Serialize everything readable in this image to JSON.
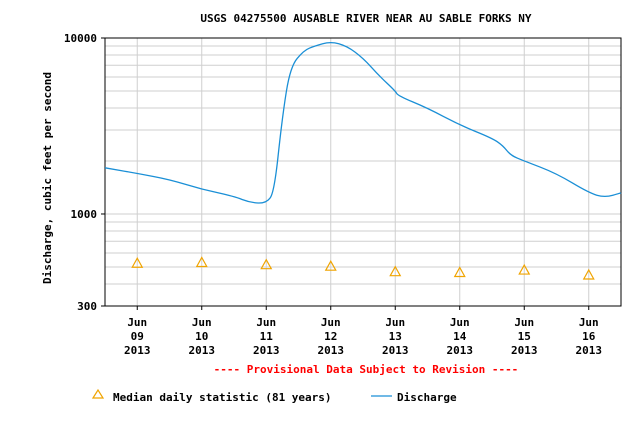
{
  "chart_data": {
    "type": "line",
    "title": "USGS 04275500 AUSABLE RIVER NEAR AU SABLE FORKS NY",
    "ylabel": "Discharge, cubic feet per second",
    "xlabel": "",
    "y_scale": "log",
    "ylim": [
      300,
      10000
    ],
    "y_ticks": [
      "10000",
      "1000",
      "300"
    ],
    "x_ticks": [
      {
        "month": "Jun",
        "day": "09",
        "year": "2013"
      },
      {
        "month": "Jun",
        "day": "10",
        "year": "2013"
      },
      {
        "month": "Jun",
        "day": "11",
        "year": "2013"
      },
      {
        "month": "Jun",
        "day": "12",
        "year": "2013"
      },
      {
        "month": "Jun",
        "day": "13",
        "year": "2013"
      },
      {
        "month": "Jun",
        "day": "14",
        "year": "2013"
      },
      {
        "month": "Jun",
        "day": "15",
        "year": "2013"
      },
      {
        "month": "Jun",
        "day": "16",
        "year": "2013"
      }
    ],
    "xlim": [
      "2013-06-08T12:00",
      "2013-06-16T12:00"
    ],
    "grid": true,
    "legend_position": "bottom",
    "series": [
      {
        "name": "Discharge",
        "kind": "line",
        "color": "#1a8fd6",
        "points": [
          [
            "2013-06-08T12:00",
            1830
          ],
          [
            "2013-06-09T00:00",
            1700
          ],
          [
            "2013-06-09T12:00",
            1570
          ],
          [
            "2013-06-10T00:00",
            1380
          ],
          [
            "2013-06-10T12:00",
            1260
          ],
          [
            "2013-06-10T18:00",
            1160
          ],
          [
            "2013-06-11T00:00",
            1150
          ],
          [
            "2013-06-11T03:00",
            1330
          ],
          [
            "2013-06-11T06:00",
            3600
          ],
          [
            "2013-06-11T09:00",
            6900
          ],
          [
            "2013-06-11T14:00",
            8500
          ],
          [
            "2013-06-11T18:00",
            9000
          ],
          [
            "2013-06-12T00:00",
            9550
          ],
          [
            "2013-06-12T06:00",
            9000
          ],
          [
            "2013-06-12T12:00",
            7700
          ],
          [
            "2013-06-12T18:00",
            6100
          ],
          [
            "2013-06-13T00:00",
            5000
          ],
          [
            "2013-06-13T01:00",
            4700
          ],
          [
            "2013-06-13T12:00",
            4000
          ],
          [
            "2013-06-14T00:00",
            3200
          ],
          [
            "2013-06-14T12:00",
            2700
          ],
          [
            "2013-06-14T16:00",
            2450
          ],
          [
            "2013-06-14T19:00",
            2150
          ],
          [
            "2013-06-15T00:00",
            2000
          ],
          [
            "2013-06-15T12:00",
            1700
          ],
          [
            "2013-06-16T00:00",
            1320
          ],
          [
            "2013-06-16T06:00",
            1240
          ],
          [
            "2013-06-16T12:00",
            1320
          ]
        ]
      },
      {
        "name": "Median daily statistic (81 years)",
        "kind": "marker",
        "marker": "triangle",
        "color": "#f0a400",
        "points": [
          [
            "2013-06-09T00:00",
            525
          ],
          [
            "2013-06-10T00:00",
            530
          ],
          [
            "2013-06-11T00:00",
            515
          ],
          [
            "2013-06-12T00:00",
            505
          ],
          [
            "2013-06-13T00:00",
            470
          ],
          [
            "2013-06-14T00:00",
            465
          ],
          [
            "2013-06-15T00:00",
            480
          ],
          [
            "2013-06-16T00:00",
            450
          ]
        ]
      }
    ],
    "annotation": "---- Provisional Data Subject to Revision ----"
  },
  "legend": {
    "median_label": "Median daily statistic (81 years)",
    "discharge_label": "Discharge"
  }
}
